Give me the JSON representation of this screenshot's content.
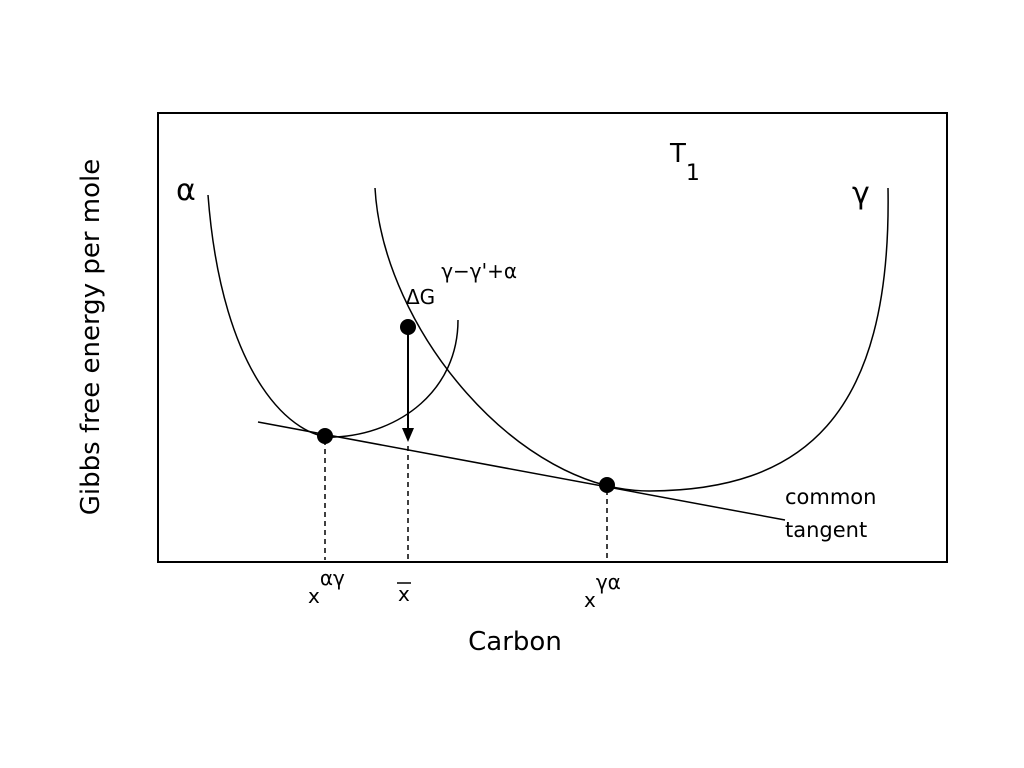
{
  "diagram": {
    "y_axis_label": "Gibbs free energy per mole",
    "x_axis_label": "Carbon",
    "temperature": {
      "base": "T",
      "sub": "1"
    },
    "phases": [
      "α",
      "γ"
    ],
    "driving_force": {
      "base": "ΔG",
      "sup": "γ−γ'+α"
    },
    "tangent_label": [
      "common",
      "tangent"
    ],
    "compositions": [
      {
        "base": "x",
        "sup": "αγ"
      },
      {
        "base": "x"
      },
      {
        "base": "x",
        "sup": "γα"
      }
    ]
  }
}
